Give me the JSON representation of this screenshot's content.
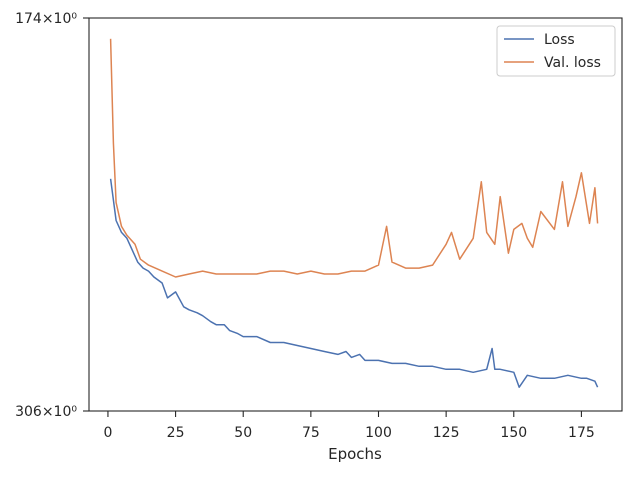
{
  "chart_data": {
    "type": "line",
    "xlabel": "Epochs",
    "ylabel": "",
    "xlim": [
      -7,
      190
    ],
    "xticks": [
      0,
      25,
      50,
      75,
      100,
      125,
      150,
      175
    ],
    "xtick_labels": [
      "0",
      "25",
      "50",
      "75",
      "100",
      "125",
      "150",
      "175"
    ],
    "ylim": [
      306,
      174
    ],
    "yticks": [
      174,
      306
    ],
    "ytick_labels": [
      "174×10⁰",
      "306×10⁰"
    ],
    "grid": false,
    "legend_position": "top-right",
    "series": [
      {
        "name": "Loss",
        "color": "#4c72b0",
        "x": [
          1,
          3,
          5,
          7,
          9,
          11,
          13,
          15,
          17,
          20,
          22,
          25,
          28,
          30,
          33,
          35,
          38,
          40,
          43,
          45,
          48,
          50,
          55,
          60,
          65,
          70,
          75,
          80,
          85,
          88,
          90,
          93,
          95,
          100,
          105,
          110,
          115,
          120,
          125,
          130,
          135,
          140,
          142,
          143,
          145,
          150,
          152,
          155,
          160,
          165,
          170,
          175,
          177,
          180,
          181
        ],
        "y": [
          228,
          242,
          246,
          248,
          252,
          256,
          258,
          259,
          261,
          263,
          268,
          266,
          271,
          272,
          273,
          274,
          276,
          277,
          277,
          279,
          280,
          281,
          281,
          283,
          283,
          284,
          285,
          286,
          287,
          286,
          288,
          287,
          289,
          289,
          290,
          290,
          291,
          291,
          292,
          292,
          293,
          292,
          285,
          292,
          292,
          293,
          298,
          294,
          295,
          295,
          294,
          295,
          295,
          296,
          298
        ]
      },
      {
        "name": "Val. loss",
        "color": "#dd8452",
        "x": [
          1,
          2,
          3,
          5,
          7,
          10,
          12,
          15,
          20,
          25,
          30,
          35,
          40,
          45,
          50,
          55,
          60,
          65,
          70,
          75,
          80,
          85,
          90,
          95,
          100,
          103,
          105,
          110,
          115,
          120,
          125,
          127,
          130,
          135,
          138,
          140,
          143,
          145,
          148,
          150,
          153,
          155,
          157,
          160,
          165,
          168,
          170,
          173,
          175,
          178,
          180,
          181
        ],
        "y": [
          181,
          216,
          236,
          244,
          247,
          250,
          255,
          257,
          259,
          261,
          260,
          259,
          260,
          260,
          260,
          260,
          259,
          259,
          260,
          259,
          260,
          260,
          259,
          259,
          257,
          244,
          256,
          258,
          258,
          257,
          250,
          246,
          255,
          248,
          229,
          246,
          250,
          234,
          253,
          245,
          243,
          248,
          251,
          239,
          245,
          229,
          244,
          234,
          226,
          243,
          231,
          243
        ]
      }
    ]
  }
}
